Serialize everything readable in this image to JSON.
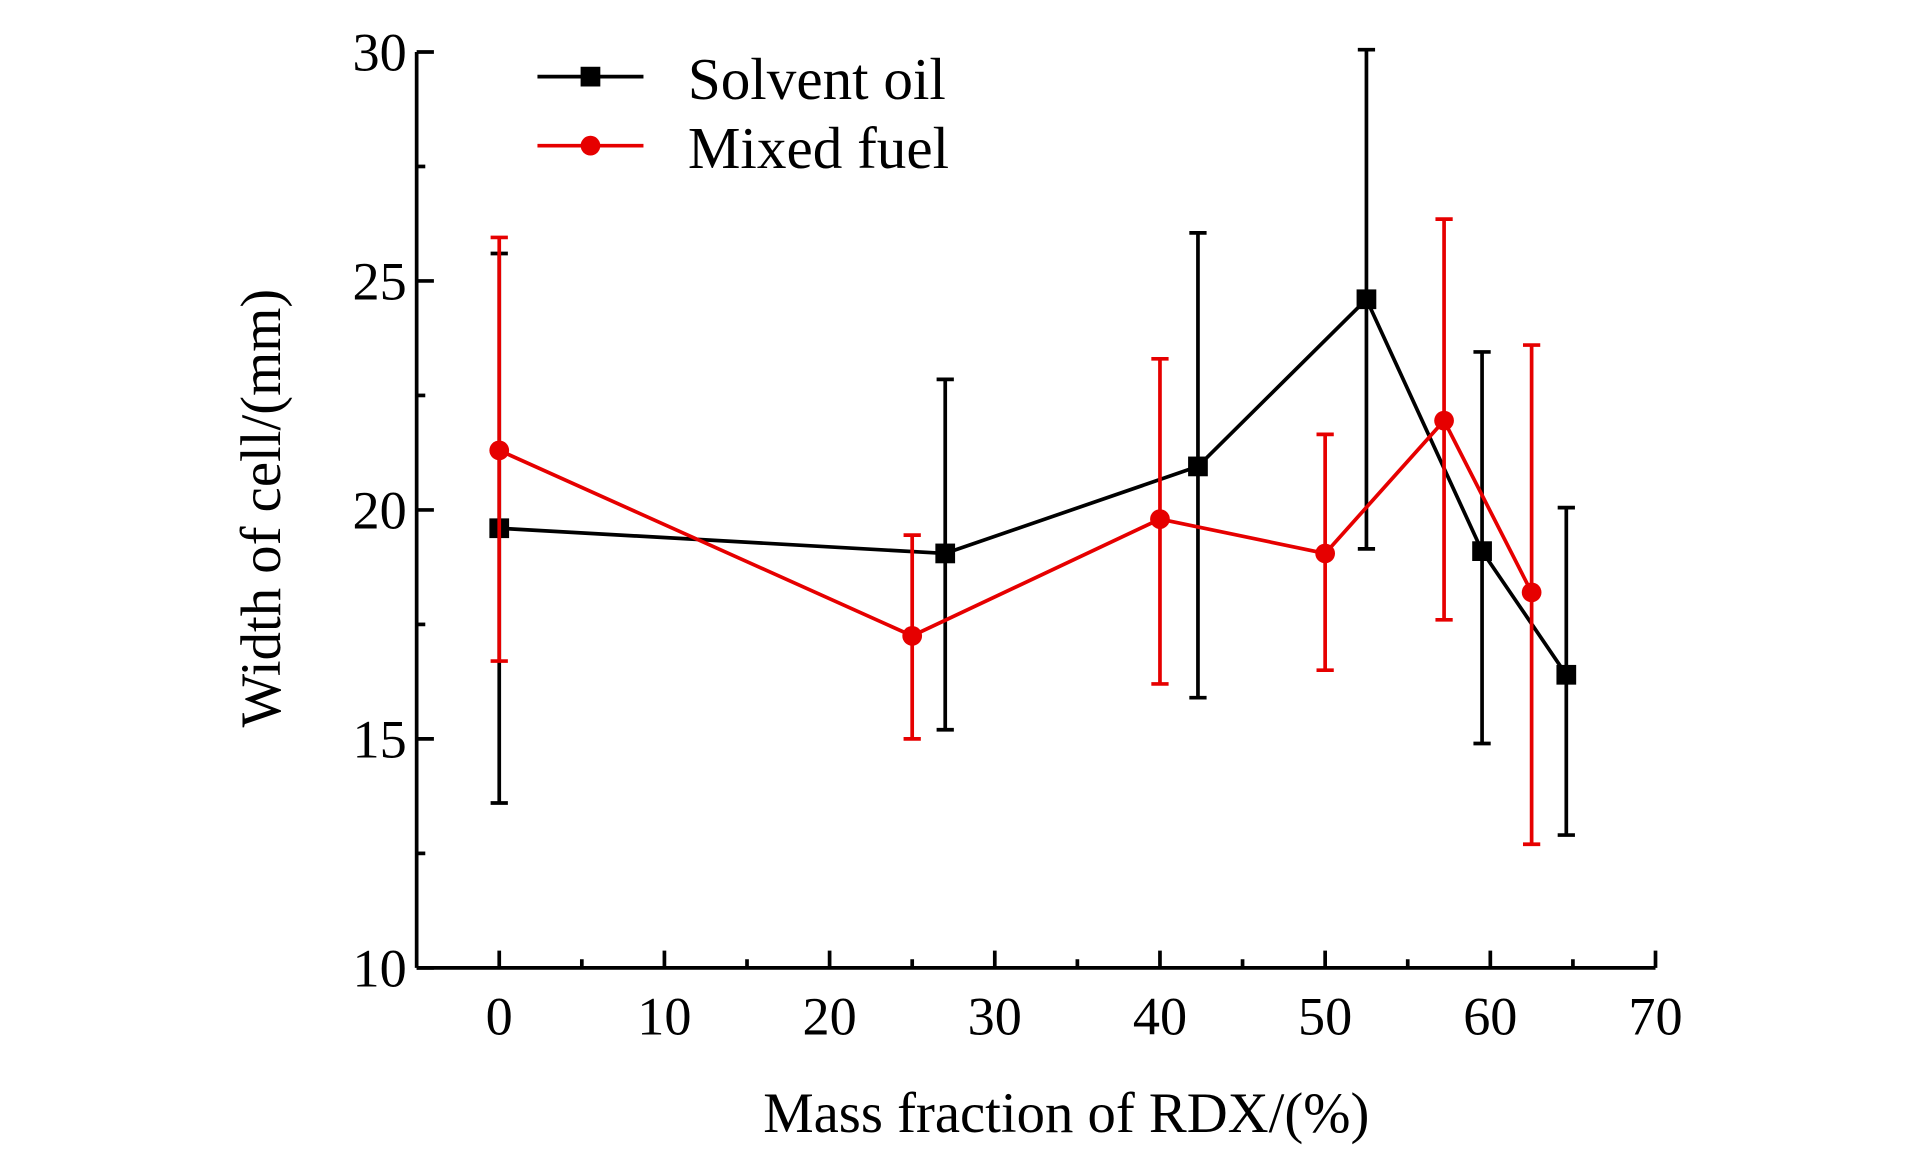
{
  "chart_data": {
    "type": "line",
    "title": "",
    "xlabel": "Mass fraction of RDX/(%)",
    "ylabel": "Width of cell/(mm)",
    "xlim": [
      -5,
      70
    ],
    "ylim": [
      10,
      30
    ],
    "xticks": [
      0,
      10,
      20,
      30,
      40,
      50,
      60,
      70
    ],
    "yticks": [
      10,
      15,
      20,
      25,
      30
    ],
    "grid": false,
    "legend_position": "top-left",
    "series": [
      {
        "name": "Solvent oil",
        "color": "#000000",
        "marker": "square",
        "x": [
          0,
          27,
          42.3,
          52.5,
          59.5,
          64.6
        ],
        "y": [
          19.6,
          19.05,
          20.95,
          24.6,
          19.1,
          16.4
        ],
        "err_high": [
          25.6,
          22.85,
          26.05,
          30.05,
          23.45,
          20.05
        ],
        "err_low": [
          13.6,
          15.2,
          15.9,
          19.15,
          14.9,
          12.9
        ]
      },
      {
        "name": "Mixed fuel",
        "color": "#e60000",
        "marker": "circle",
        "x": [
          0,
          25,
          40,
          50,
          57.2,
          62.5
        ],
        "y": [
          21.3,
          17.25,
          19.8,
          19.05,
          21.95,
          18.2
        ],
        "err_high": [
          25.95,
          19.45,
          23.3,
          21.65,
          26.35,
          23.6
        ],
        "err_low": [
          16.7,
          15.0,
          16.2,
          16.5,
          17.6,
          12.7
        ]
      }
    ]
  }
}
